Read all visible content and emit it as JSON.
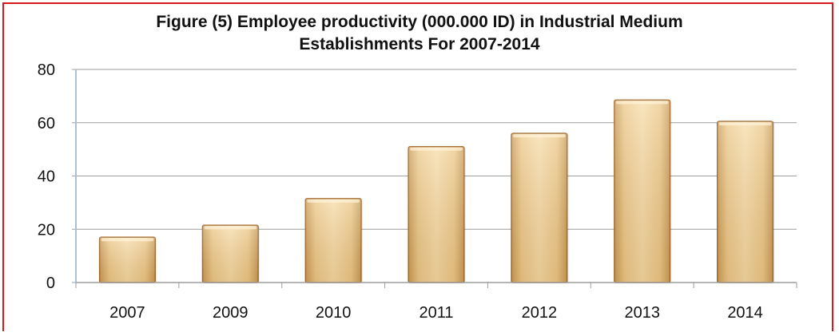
{
  "chart_data": {
    "type": "bar",
    "title_lines": [
      "Figure (5) Employee productivity (000.000 ID) in Industrial Medium",
      "Establishments For 2007-2014"
    ],
    "categories": [
      "2007",
      "2009",
      "2010",
      "2011",
      "2012",
      "2013",
      "2014"
    ],
    "values": [
      17,
      21.5,
      31.5,
      51,
      56,
      68.5,
      60.5
    ],
    "ylim": [
      0,
      80
    ],
    "yticks": [
      0,
      20,
      40,
      60,
      80
    ],
    "grid": true,
    "legend": "none",
    "colors": {
      "bar_fill": "#f2d49a",
      "bar_edge": "#a0682a",
      "bar_top": "#fff4dc",
      "grid": "#9e9e9e",
      "axis": "#a8bfdc",
      "frame": "#d7191c"
    }
  }
}
